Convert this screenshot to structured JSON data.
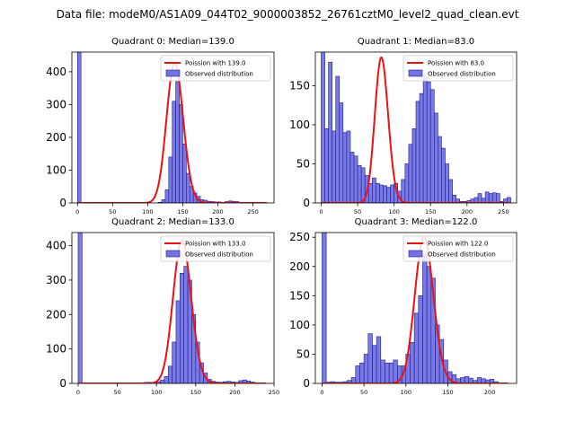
{
  "figure": {
    "suptitle": "Data file: modeM0/AS1A09_044T02_9000003852_26761cztM0_level2_quad_clean.evt"
  },
  "colors": {
    "bar_fill": "#7373e6",
    "bar_edge": "#1a1a8c",
    "poisson_line": "#ee1111",
    "axes": "#000000"
  },
  "chart_data": [
    {
      "type": "bar",
      "title": "Quadrant 0: Median=139.0",
      "xlim": [
        -8,
        280
      ],
      "ylim": [
        0,
        460
      ],
      "xticks": [
        0,
        50,
        100,
        150,
        200,
        250
      ],
      "yticks": [
        0,
        100,
        200,
        300,
        400
      ],
      "legend": {
        "position": "top-right",
        "line_label": "Poission with 139.0",
        "bar_label": "Observed distribution"
      },
      "bin_width": 5,
      "bins": [
        [
          0,
          460
        ],
        [
          115,
          2
        ],
        [
          120,
          10
        ],
        [
          125,
          40
        ],
        [
          130,
          140
        ],
        [
          135,
          310
        ],
        [
          140,
          370
        ],
        [
          145,
          300
        ],
        [
          150,
          180
        ],
        [
          155,
          90
        ],
        [
          160,
          50
        ],
        [
          165,
          30
        ],
        [
          170,
          20
        ],
        [
          175,
          10
        ],
        [
          180,
          8
        ],
        [
          185,
          5
        ],
        [
          190,
          4
        ],
        [
          195,
          3
        ],
        [
          200,
          3
        ],
        [
          205,
          2
        ],
        [
          210,
          4
        ],
        [
          215,
          6
        ],
        [
          220,
          5
        ],
        [
          225,
          4
        ],
        [
          230,
          2
        ],
        [
          235,
          1
        ]
      ],
      "poisson": {
        "mean": 139.0,
        "peak": 428
      }
    },
    {
      "type": "bar",
      "title": "Quadrant 1: Median=83.0",
      "xlim": [
        -8,
        268
      ],
      "ylim": [
        0,
        193
      ],
      "xticks": [
        0,
        50,
        100,
        150,
        200,
        250
      ],
      "yticks": [
        0,
        50,
        100,
        150
      ],
      "legend": {
        "position": "top-right",
        "line_label": "Poission with 83.0",
        "bar_label": "Observed distribution"
      },
      "bin_width": 5,
      "bins": [
        [
          0,
          193
        ],
        [
          5,
          95
        ],
        [
          10,
          180
        ],
        [
          15,
          92
        ],
        [
          20,
          162
        ],
        [
          25,
          128
        ],
        [
          30,
          90
        ],
        [
          35,
          92
        ],
        [
          40,
          65
        ],
        [
          45,
          60
        ],
        [
          50,
          48
        ],
        [
          55,
          45
        ],
        [
          60,
          35
        ],
        [
          65,
          25
        ],
        [
          70,
          32
        ],
        [
          75,
          25
        ],
        [
          80,
          23
        ],
        [
          85,
          22
        ],
        [
          90,
          20
        ],
        [
          95,
          23
        ],
        [
          100,
          25
        ],
        [
          105,
          15
        ],
        [
          110,
          30
        ],
        [
          115,
          50
        ],
        [
          120,
          75
        ],
        [
          125,
          95
        ],
        [
          130,
          130
        ],
        [
          135,
          140
        ],
        [
          140,
          162
        ],
        [
          145,
          155
        ],
        [
          150,
          145
        ],
        [
          155,
          115
        ],
        [
          160,
          85
        ],
        [
          165,
          70
        ],
        [
          170,
          50
        ],
        [
          175,
          30
        ],
        [
          180,
          10
        ],
        [
          185,
          5
        ],
        [
          190,
          2
        ],
        [
          195,
          2
        ],
        [
          200,
          3
        ],
        [
          205,
          5
        ],
        [
          210,
          7
        ],
        [
          215,
          12
        ],
        [
          220,
          6
        ],
        [
          225,
          14
        ],
        [
          230,
          12
        ],
        [
          235,
          13
        ],
        [
          240,
          12
        ],
        [
          245,
          2
        ],
        [
          250,
          5
        ],
        [
          255,
          7
        ]
      ],
      "poisson": {
        "mean": 83.0,
        "peak": 186
      }
    },
    {
      "type": "bar",
      "title": "Quadrant 2: Median=133.0",
      "xlim": [
        -8,
        250
      ],
      "ylim": [
        0,
        438
      ],
      "xticks": [
        0,
        50,
        100,
        150,
        200,
        250
      ],
      "yticks": [
        0,
        100,
        200,
        300,
        400
      ],
      "legend": {
        "position": "top-right",
        "line_label": "Poission with 133.0",
        "bar_label": "Observed distribution"
      },
      "bin_width": 5,
      "bins": [
        [
          0,
          438
        ],
        [
          80,
          2
        ],
        [
          85,
          3
        ],
        [
          90,
          3
        ],
        [
          95,
          2
        ],
        [
          100,
          5
        ],
        [
          105,
          10
        ],
        [
          110,
          20
        ],
        [
          115,
          50
        ],
        [
          120,
          120
        ],
        [
          125,
          240
        ],
        [
          130,
          320
        ],
        [
          135,
          340
        ],
        [
          140,
          300
        ],
        [
          145,
          200
        ],
        [
          150,
          120
        ],
        [
          155,
          60
        ],
        [
          160,
          30
        ],
        [
          165,
          12
        ],
        [
          170,
          6
        ],
        [
          175,
          4
        ],
        [
          180,
          3
        ],
        [
          185,
          5
        ],
        [
          190,
          6
        ],
        [
          195,
          4
        ],
        [
          200,
          3
        ],
        [
          205,
          8
        ],
        [
          210,
          10
        ],
        [
          215,
          7
        ],
        [
          220,
          4
        ],
        [
          225,
          2
        ]
      ],
      "poisson": {
        "mean": 133.0,
        "peak": 415
      }
    },
    {
      "type": "bar",
      "title": "Quadrant 3: Median=122.0",
      "xlim": [
        -8,
        232
      ],
      "ylim": [
        0,
        258
      ],
      "xticks": [
        0,
        50,
        100,
        150,
        200
      ],
      "yticks": [
        0,
        50,
        100,
        150,
        200,
        250
      ],
      "legend": {
        "position": "top-right",
        "line_label": "Poission with 122.0",
        "bar_label": "Observed distribution"
      },
      "bin_width": 5,
      "bins": [
        [
          0,
          258
        ],
        [
          5,
          2
        ],
        [
          10,
          3
        ],
        [
          15,
          2
        ],
        [
          20,
          2
        ],
        [
          25,
          3
        ],
        [
          30,
          5
        ],
        [
          35,
          10
        ],
        [
          40,
          30
        ],
        [
          45,
          35
        ],
        [
          50,
          50
        ],
        [
          55,
          85
        ],
        [
          60,
          65
        ],
        [
          65,
          80
        ],
        [
          70,
          40
        ],
        [
          75,
          35
        ],
        [
          80,
          35
        ],
        [
          85,
          40
        ],
        [
          90,
          30
        ],
        [
          95,
          30
        ],
        [
          100,
          50
        ],
        [
          105,
          70
        ],
        [
          110,
          120
        ],
        [
          115,
          150
        ],
        [
          120,
          220
        ],
        [
          125,
          200
        ],
        [
          130,
          180
        ],
        [
          135,
          100
        ],
        [
          140,
          75
        ],
        [
          145,
          40
        ],
        [
          150,
          20
        ],
        [
          155,
          15
        ],
        [
          160,
          8
        ],
        [
          165,
          10
        ],
        [
          170,
          12
        ],
        [
          175,
          9
        ],
        [
          180,
          5
        ],
        [
          185,
          10
        ],
        [
          190,
          8
        ],
        [
          195,
          6
        ],
        [
          200,
          7
        ],
        [
          205,
          3
        ]
      ],
      "poisson": {
        "mean": 122.0,
        "peak": 250
      }
    }
  ]
}
